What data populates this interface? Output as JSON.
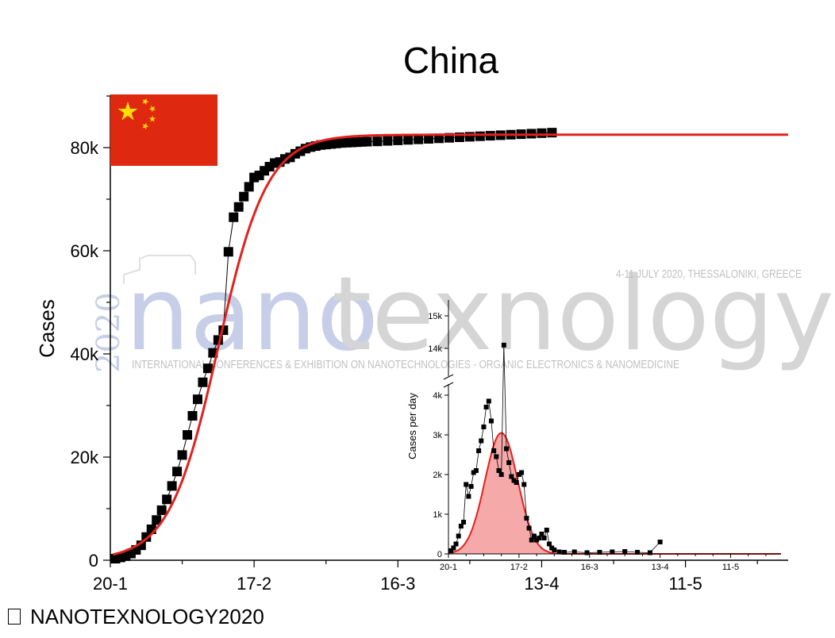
{
  "chart_data": [
    {
      "type": "scatter",
      "title": "China",
      "xlabel": "",
      "ylabel": "Cases",
      "x_unit": "date (2020)",
      "x_ticks": [
        {
          "label": "20-1",
          "day": 0
        },
        {
          "label": "17-2",
          "day": 28
        },
        {
          "label": "16-3",
          "day": 56
        },
        {
          "label": "13-4",
          "day": 84
        },
        {
          "label": "11-5",
          "day": 112
        }
      ],
      "xlim_days": [
        0,
        132
      ],
      "ylim": [
        0,
        90000
      ],
      "y_ticks": [
        {
          "label": "0",
          "value": 0
        },
        {
          "label": "20k",
          "value": 20000
        },
        {
          "label": "40k",
          "value": 40000
        },
        {
          "label": "60k",
          "value": 60000
        },
        {
          "label": "80k",
          "value": 80000
        }
      ],
      "series": [
        {
          "role": "observed cumulative cases",
          "marker": "square",
          "color": "#000000",
          "x_days": [
            1,
            2,
            3,
            4,
            5,
            6,
            7,
            8,
            9,
            10,
            11,
            12,
            13,
            14,
            15,
            16,
            17,
            18,
            19,
            20,
            21,
            22,
            23,
            24,
            25,
            26,
            27,
            28,
            29,
            30,
            31,
            32,
            33,
            34,
            35,
            36,
            37,
            38,
            39,
            40,
            41,
            42,
            43,
            44,
            45,
            46,
            47,
            48,
            49,
            50,
            52,
            54,
            56,
            58,
            60,
            62,
            64,
            66,
            68,
            70,
            72,
            74,
            76,
            78,
            80,
            82,
            84,
            86
          ],
          "y": [
            300,
            550,
            800,
            1300,
            2000,
            2900,
            4500,
            6000,
            7800,
            9700,
            11800,
            14400,
            17200,
            20400,
            24300,
            28000,
            31200,
            34500,
            37200,
            40200,
            42700,
            44600,
            59800,
            66500,
            68500,
            70500,
            72400,
            74200,
            74600,
            75500,
            76300,
            77000,
            77200,
            77800,
            78100,
            78800,
            79300,
            79800,
            80100,
            80300,
            80500,
            80600,
            80700,
            80800,
            80900,
            80950,
            81000,
            81050,
            81100,
            81150,
            81200,
            81300,
            81400,
            81500,
            81600,
            81700,
            81800,
            81900,
            82000,
            82100,
            82200,
            82300,
            82400,
            82500,
            82600,
            82700,
            82800,
            82900
          ]
        },
        {
          "role": "fitted curve",
          "color": "#e3211c",
          "model": "logistic",
          "K": 82500,
          "midpoint_day": 21,
          "rate_per_day": 0.21
        }
      ],
      "flag": {
        "country": "China",
        "colors": {
          "field": "#de2910",
          "stars": "#ffde00"
        }
      }
    },
    {
      "type": "scatter",
      "role": "inset",
      "ylabel": "Cases per day",
      "x_ticks": [
        {
          "label": "20-1",
          "day": 0
        },
        {
          "label": "17-2",
          "day": 28
        },
        {
          "label": "16-3",
          "day": 56
        },
        {
          "label": "13-4",
          "day": 84
        },
        {
          "label": "11-5",
          "day": 112
        }
      ],
      "y_ticks_lower": [
        {
          "label": "0",
          "value": 0
        },
        {
          "label": "1k",
          "value": 1000
        },
        {
          "label": "2k",
          "value": 2000
        },
        {
          "label": "3k",
          "value": 3000
        },
        {
          "label": "4k",
          "value": 4000
        }
      ],
      "y_ticks_upper": [
        {
          "label": "14k",
          "value": 14000
        },
        {
          "label": "15k",
          "value": 15000
        }
      ],
      "y_axis_break": [
        4500,
        13500
      ],
      "series": [
        {
          "role": "observed daily cases",
          "marker": "square",
          "color": "#000000",
          "x_days": [
            1,
            2,
            3,
            4,
            5,
            6,
            7,
            8,
            9,
            10,
            11,
            12,
            13,
            14,
            15,
            16,
            17,
            18,
            19,
            20,
            21,
            22,
            23,
            24,
            25,
            26,
            27,
            28,
            29,
            30,
            31,
            32,
            33,
            34,
            35,
            36,
            37,
            38,
            39,
            40,
            41,
            42,
            44,
            46,
            50,
            55,
            60,
            65,
            70,
            75,
            80,
            84
          ],
          "y": [
            80,
            150,
            250,
            450,
            700,
            800,
            1750,
            1450,
            1700,
            2050,
            2100,
            2600,
            2850,
            3200,
            3700,
            3850,
            3350,
            2600,
            2450,
            2100,
            2000,
            14100,
            2650,
            2300,
            1950,
            1850,
            1800,
            2000,
            2050,
            1750,
            900,
            650,
            350,
            450,
            350,
            400,
            500,
            400,
            600,
            250,
            150,
            100,
            50,
            40,
            50,
            30,
            40,
            50,
            60,
            40,
            30,
            300
          ]
        },
        {
          "role": "fitted daily curve",
          "color": "#e3211c",
          "fill": "#f4a0a0",
          "model": "gaussian",
          "peak": 3050,
          "mean_day": 21,
          "sigma_days": 6.5
        }
      ]
    }
  ],
  "watermark": {
    "brand": "nanotexnology",
    "year": "2020",
    "tagline": "INTERNATIONAL CONFERENCES & EXHIBITION ON NANOTECHNOLOGIES - ORGANIC ELECTRONICS & NANOMEDICINE",
    "date_place": "4-11 JULY 2020, THESSALONIKI, GREECE"
  },
  "footer": {
    "text": "NANOTEXNOLOGY2020"
  }
}
